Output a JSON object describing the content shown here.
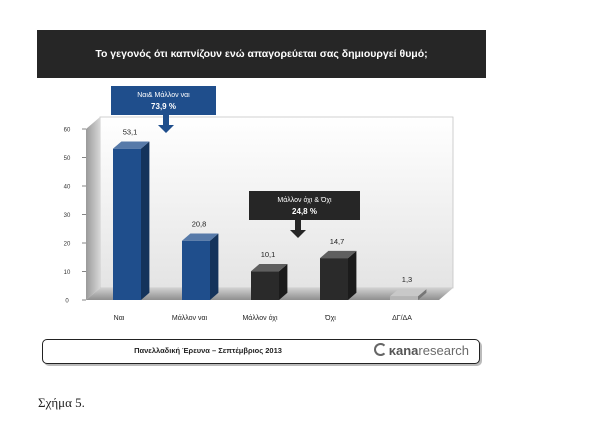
{
  "chart_data": {
    "type": "bar",
    "title": "Το γεγονός ότι καπνίζουν ενώ απαγορεύεται σας δημιουργεί θυμό;",
    "categories": [
      "Ναι",
      "Μάλλον ναι",
      "Μάλλον όχι",
      "Όχι",
      "ΔΓ/ΔΑ"
    ],
    "values": [
      53.1,
      20.8,
      10.1,
      14.7,
      1.3
    ],
    "value_labels": [
      "53,1",
      "20,8",
      "10,1",
      "14,7",
      "1,3"
    ],
    "ylim": [
      0,
      60
    ],
    "yticks": [
      0,
      10,
      20,
      30,
      40,
      50,
      60
    ],
    "grid": false,
    "bar_colors": [
      "#1f4e8c",
      "#1f4e8c",
      "#2a2a2a",
      "#2a2a2a",
      "#b5b5b5"
    ],
    "annotations": [
      {
        "line1": "Ναι& Μάλλον ναι",
        "line2": "73,9 %",
        "color": "#1f4e8c"
      },
      {
        "line1": "Μάλλον όχι & Όχι",
        "line2": "24,8 %",
        "color": "#262626"
      }
    ]
  },
  "footer": {
    "text": "Πανελλαδική Έρευνα – Σεπτέμβριος 2013",
    "logo_bold": "κana",
    "logo_light": "research"
  },
  "caption": "Σχήμα 5."
}
